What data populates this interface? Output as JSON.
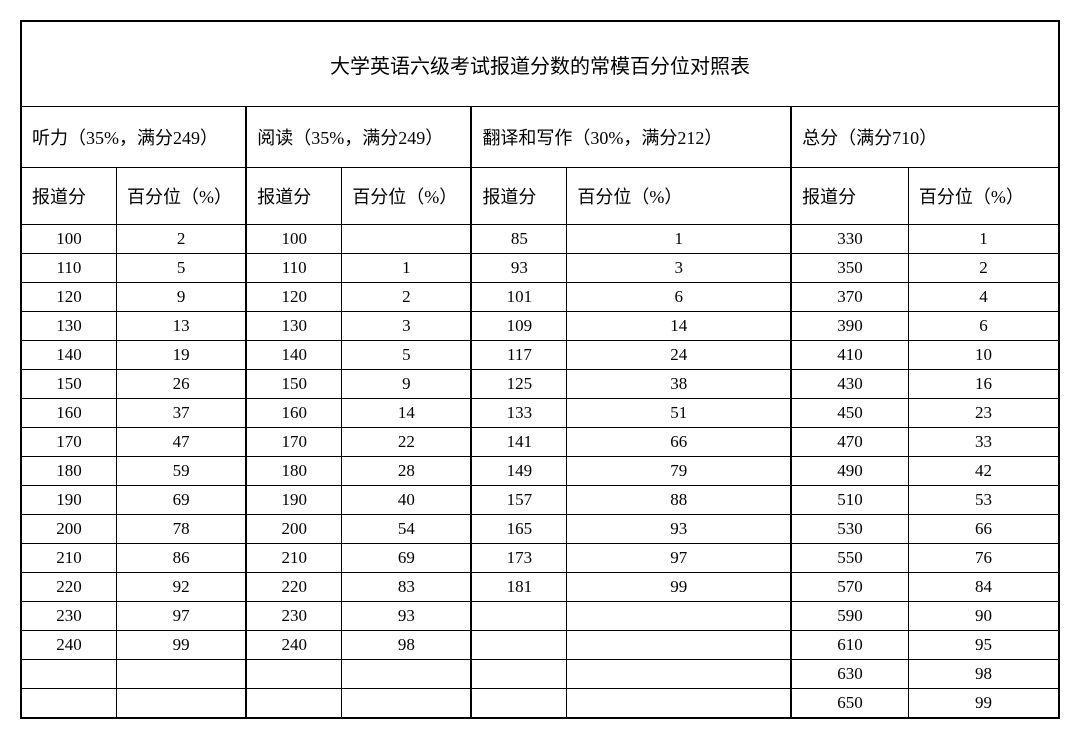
{
  "title": "大学英语六级考试报道分数的常模百分位对照表",
  "sections": [
    {
      "label": "听力（35%，满分249）",
      "sub_score": "报道分",
      "sub_pct": "百分位（%）"
    },
    {
      "label": "阅读（35%，满分249）",
      "sub_score": "报道分",
      "sub_pct": "百分位（%）"
    },
    {
      "label": "翻译和写作（30%，满分212）",
      "sub_score": "报道分",
      "sub_pct": "百分位（%）"
    },
    {
      "label": "总分（满分710）",
      "sub_score": "报道分",
      "sub_pct": "百分位（%）"
    }
  ],
  "rows": [
    [
      "100",
      "2",
      "100",
      "",
      "85",
      "1",
      "330",
      "1"
    ],
    [
      "110",
      "5",
      "110",
      "1",
      "93",
      "3",
      "350",
      "2"
    ],
    [
      "120",
      "9",
      "120",
      "2",
      "101",
      "6",
      "370",
      "4"
    ],
    [
      "130",
      "13",
      "130",
      "3",
      "109",
      "14",
      "390",
      "6"
    ],
    [
      "140",
      "19",
      "140",
      "5",
      "117",
      "24",
      "410",
      "10"
    ],
    [
      "150",
      "26",
      "150",
      "9",
      "125",
      "38",
      "430",
      "16"
    ],
    [
      "160",
      "37",
      "160",
      "14",
      "133",
      "51",
      "450",
      "23"
    ],
    [
      "170",
      "47",
      "170",
      "22",
      "141",
      "66",
      "470",
      "33"
    ],
    [
      "180",
      "59",
      "180",
      "28",
      "149",
      "79",
      "490",
      "42"
    ],
    [
      "190",
      "69",
      "190",
      "40",
      "157",
      "88",
      "510",
      "53"
    ],
    [
      "200",
      "78",
      "200",
      "54",
      "165",
      "93",
      "530",
      "66"
    ],
    [
      "210",
      "86",
      "210",
      "69",
      "173",
      "97",
      "550",
      "76"
    ],
    [
      "220",
      "92",
      "220",
      "83",
      "181",
      "99",
      "570",
      "84"
    ],
    [
      "230",
      "97",
      "230",
      "93",
      "",
      "",
      "590",
      "90"
    ],
    [
      "240",
      "99",
      "240",
      "98",
      "",
      "",
      "610",
      "95"
    ],
    [
      "",
      "",
      "",
      "",
      "",
      "",
      "630",
      "98"
    ],
    [
      "",
      "",
      "",
      "",
      "",
      "",
      "650",
      "99"
    ]
  ],
  "col_widths_pct": [
    10,
    12,
    10,
    12,
    10,
    20,
    12,
    14
  ]
}
